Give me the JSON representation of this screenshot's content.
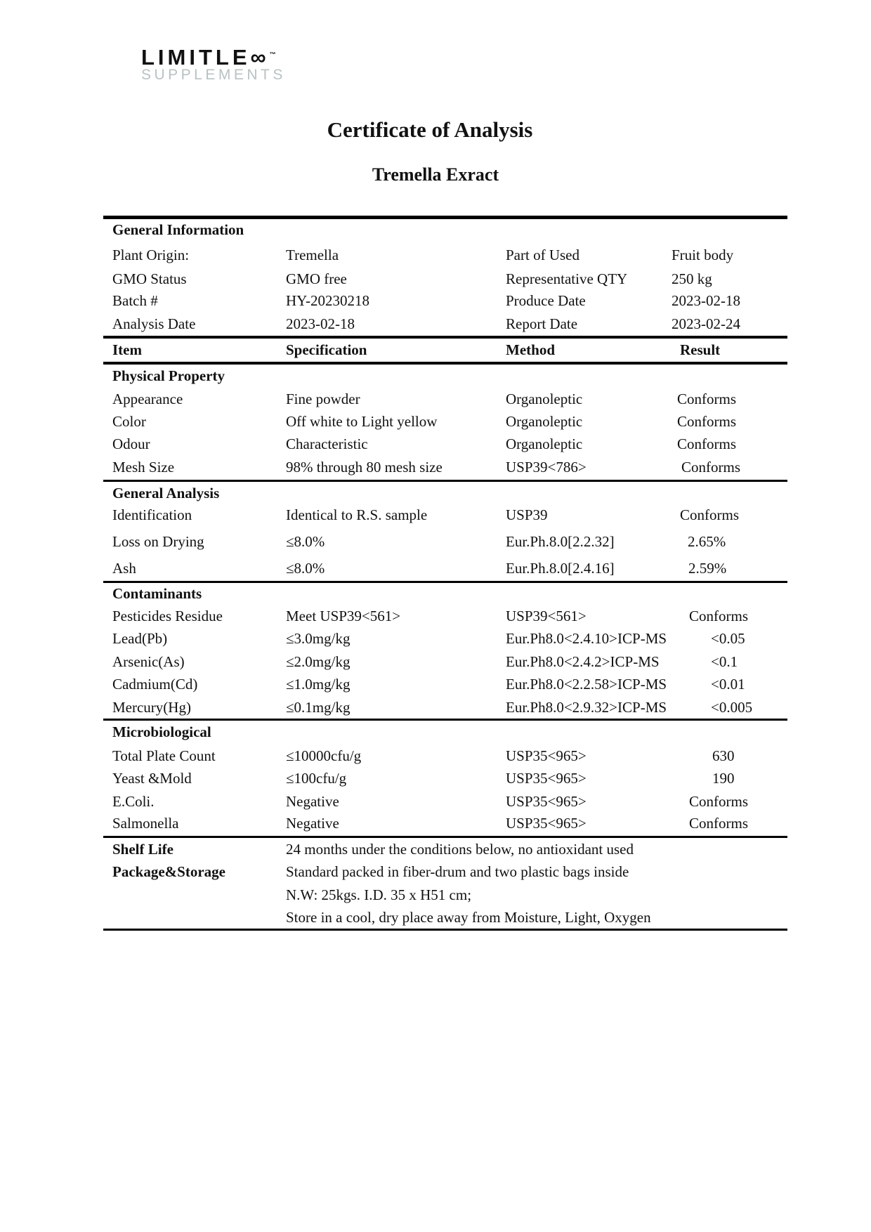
{
  "logo": {
    "line1": "LIMITLE∞",
    "line2": "SUPPLEMENTS",
    "tm": "™"
  },
  "title": "Certificate of Analysis",
  "subtitle": "Tremella Exract",
  "general_information": {
    "heading": "General Information",
    "rows": [
      [
        "Plant Origin:",
        "Tremella",
        "Part of Used",
        "Fruit body"
      ],
      [
        "GMO Status",
        "GMO free",
        "Representative QTY",
        "250 kg"
      ],
      [
        "Batch #",
        "HY-20230218",
        "Produce Date",
        "2023-02-18"
      ],
      [
        "Analysis Date",
        "2023-02-18",
        "Report Date",
        "2023-02-24"
      ]
    ]
  },
  "columns": [
    "Item",
    "Specification",
    "Method",
    "Result"
  ],
  "sections": [
    {
      "heading": "Physical Property",
      "rows": [
        [
          "Appearance",
          "Fine powder",
          "Organoleptic",
          "Conforms"
        ],
        [
          "Color",
          "Off white to Light yellow",
          "Organoleptic",
          "Conforms"
        ],
        [
          "Odour",
          "Characteristic",
          "Organoleptic",
          "Conforms"
        ],
        [
          "Mesh Size",
          "98% through 80 mesh size",
          "USP39<786>",
          "Conforms"
        ]
      ]
    },
    {
      "heading": "General Analysis",
      "rows": [
        [
          "Identification",
          "Identical to R.S. sample",
          "USP39",
          "Conforms"
        ],
        [
          "Loss on Drying",
          "≤8.0%",
          "Eur.Ph.8.0[2.2.32]",
          "2.65%"
        ],
        [
          "Ash",
          "≤8.0%",
          "Eur.Ph.8.0[2.4.16]",
          "2.59%"
        ]
      ]
    },
    {
      "heading": "Contaminants",
      "rows": [
        [
          "Pesticides Residue",
          "Meet USP39<561>",
          "USP39<561>",
          "Conforms"
        ],
        [
          "Lead(Pb)",
          "≤3.0mg/kg",
          "Eur.Ph8.0<2.4.10>ICP-MS",
          "<0.05"
        ],
        [
          "Arsenic(As)",
          "≤2.0mg/kg",
          "Eur.Ph8.0<2.4.2>ICP-MS",
          "<0.1"
        ],
        [
          "Cadmium(Cd)",
          "≤1.0mg/kg",
          "Eur.Ph8.0<2.2.58>ICP-MS",
          "<0.01"
        ],
        [
          "Mercury(Hg)",
          "≤0.1mg/kg",
          "Eur.Ph8.0<2.9.32>ICP-MS",
          "<0.005"
        ]
      ]
    },
    {
      "heading": "Microbiological",
      "rows": [
        [
          "Total Plate Count",
          "≤10000cfu/g",
          "USP35<965>",
          "630"
        ],
        [
          "Yeast &Mold",
          "≤100cfu/g",
          "USP35<965>",
          "190"
        ],
        [
          "E.Coli.",
          "Negative",
          "USP35<965>",
          "Conforms"
        ],
        [
          "Salmonella",
          "Negative",
          "USP35<965>",
          "Conforms"
        ]
      ]
    }
  ],
  "shelf_life": {
    "label": "Shelf Life",
    "value": "24 months under the conditions below, no antioxidant used"
  },
  "package": {
    "label": "Package&Storage",
    "lines": [
      "Standard packed in fiber-drum and two plastic bags inside",
      "N.W: 25kgs. I.D. 35 x H51 cm;",
      "Store in a cool, dry place away from Moisture, Light, Oxygen"
    ]
  }
}
